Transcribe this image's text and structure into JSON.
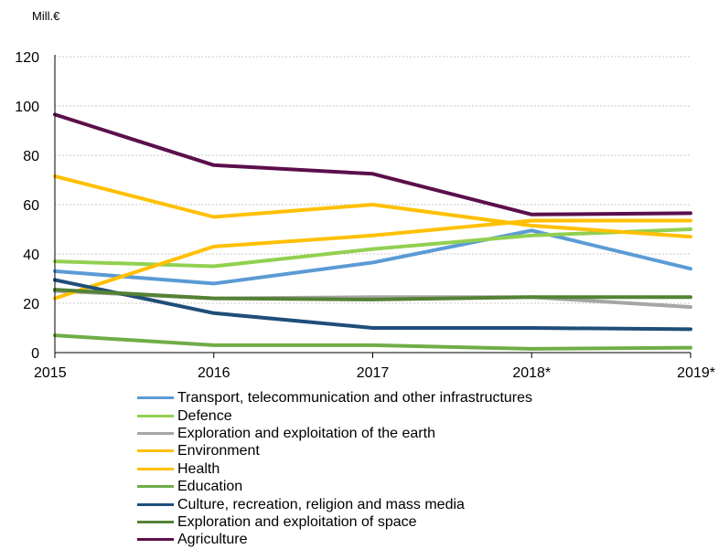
{
  "chart_data": {
    "type": "line",
    "unit_label": "Mill.€",
    "categories": [
      "2015",
      "2016",
      "2017",
      "2018*",
      "2019*"
    ],
    "ylim": [
      0,
      120
    ],
    "yticks": [
      0,
      20,
      40,
      60,
      80,
      100,
      120
    ],
    "grid": true,
    "legend_position": "bottom",
    "series": [
      {
        "name": "Transport, telecommunication and other infrastructures",
        "color": "#5b9bd5",
        "values": [
          33,
          28,
          36.5,
          49.5,
          34
        ]
      },
      {
        "name": "Defence",
        "color": "#92d050",
        "values": [
          37,
          35,
          42,
          47.5,
          50
        ]
      },
      {
        "name": "Exploration and exploitation of the earth",
        "color": "#a6a6a6",
        "values": [
          25,
          22,
          22.5,
          22.5,
          18.5
        ]
      },
      {
        "name": "Environment",
        "color": "#ffc000",
        "values": [
          71.5,
          55,
          60,
          51.5,
          47
        ]
      },
      {
        "name": "Health",
        "color": "#ffc000",
        "values": [
          22,
          43,
          47.5,
          53.5,
          53.5
        ]
      },
      {
        "name": "Education",
        "color": "#70ad47",
        "values": [
          7,
          3,
          3,
          1.5,
          2
        ]
      },
      {
        "name": "Culture, recreation, religion and mass media",
        "color": "#1f4e79",
        "values": [
          29.5,
          16,
          10,
          10,
          9.5
        ]
      },
      {
        "name": "Exploration and exploitation of space",
        "color": "#548235",
        "values": [
          25.5,
          22,
          21.5,
          22.5,
          22.5
        ]
      },
      {
        "name": "Agriculture",
        "color": "#5b0f4b",
        "values": [
          96.5,
          76,
          72.5,
          56,
          56.5
        ]
      }
    ]
  }
}
